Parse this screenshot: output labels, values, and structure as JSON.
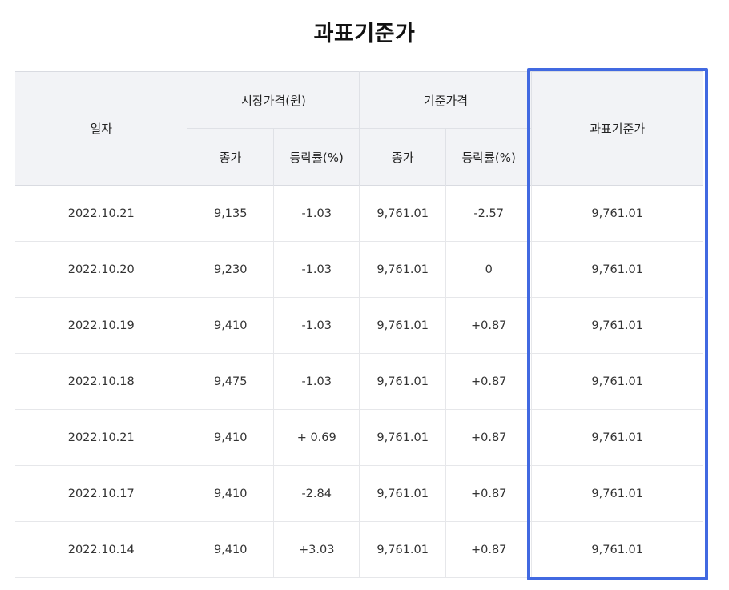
{
  "title": "과표기준가",
  "header": {
    "date": "일자",
    "market_group": "시장가격(원)",
    "base_group": "기준가격",
    "close": "종가",
    "change": "등락률(%)",
    "tax_base": "과표기준가"
  },
  "rows": [
    {
      "date": "2022.10.21",
      "market_close": "9,135",
      "market_change": "-1.03",
      "market_dir": "neg",
      "base_close": "9,761.01",
      "base_change": "-2.57",
      "base_dir": "neg",
      "tax_base": "9,761.01"
    },
    {
      "date": "2022.10.20",
      "market_close": "9,230",
      "market_change": "-1.03",
      "market_dir": "neg",
      "base_close": "9,761.01",
      "base_change": "0",
      "base_dir": "zero",
      "tax_base": "9,761.01"
    },
    {
      "date": "2022.10.19",
      "market_close": "9,410",
      "market_change": "-1.03",
      "market_dir": "neg",
      "base_close": "9,761.01",
      "base_change": "+0.87",
      "base_dir": "pos",
      "tax_base": "9,761.01"
    },
    {
      "date": "2022.10.18",
      "market_close": "9,475",
      "market_change": "-1.03",
      "market_dir": "neg",
      "base_close": "9,761.01",
      "base_change": "+0.87",
      "base_dir": "pos",
      "tax_base": "9,761.01"
    },
    {
      "date": "2022.10.21",
      "market_close": "9,410",
      "market_change": "+ 0.69",
      "market_dir": "pos",
      "base_close": "9,761.01",
      "base_change": "+0.87",
      "base_dir": "pos",
      "tax_base": "9,761.01"
    },
    {
      "date": "2022.10.17",
      "market_close": "9,410",
      "market_change": "-2.84",
      "market_dir": "neg",
      "base_close": "9,761.01",
      "base_change": "+0.87",
      "base_dir": "pos",
      "tax_base": "9,761.01"
    },
    {
      "date": "2022.10.14",
      "market_close": "9,410",
      "market_change": "+3.03",
      "market_dir": "pos",
      "base_close": "9,761.01",
      "base_change": "+0.87",
      "base_dir": "pos",
      "tax_base": "9,761.01"
    }
  ],
  "colors": {
    "negative": "#3554d1",
    "positive": "#d1232a",
    "highlight_border": "#4169e1",
    "header_bg": "#f2f3f6"
  }
}
